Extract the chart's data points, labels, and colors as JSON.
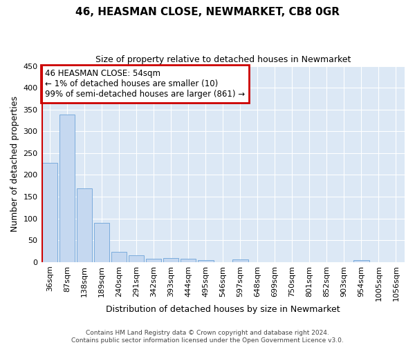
{
  "title1": "46, HEASMAN CLOSE, NEWMARKET, CB8 0GR",
  "title2": "Size of property relative to detached houses in Newmarket",
  "xlabel": "Distribution of detached houses by size in Newmarket",
  "ylabel": "Number of detached properties",
  "annotation_line1": "46 HEASMAN CLOSE: 54sqm",
  "annotation_line2": "← 1% of detached houses are smaller (10)",
  "annotation_line3": "99% of semi-detached houses are larger (861) →",
  "categories": [
    "36sqm",
    "87sqm",
    "138sqm",
    "189sqm",
    "240sqm",
    "291sqm",
    "342sqm",
    "393sqm",
    "444sqm",
    "495sqm",
    "546sqm",
    "597sqm",
    "648sqm",
    "699sqm",
    "750sqm",
    "801sqm",
    "852sqm",
    "903sqm",
    "954sqm",
    "1005sqm",
    "1056sqm"
  ],
  "values": [
    228,
    338,
    169,
    90,
    23,
    16,
    7,
    9,
    7,
    4,
    0,
    6,
    0,
    0,
    0,
    0,
    0,
    0,
    5,
    0,
    0
  ],
  "bar_color": "#c5d8f0",
  "bar_edge_color": "#7aabdc",
  "marker_color": "#cc0000",
  "ylim": [
    0,
    450
  ],
  "yticks": [
    0,
    50,
    100,
    150,
    200,
    250,
    300,
    350,
    400,
    450
  ],
  "fig_background": "#ffffff",
  "plot_background": "#dce8f5",
  "grid_color": "#ffffff",
  "annotation_box_bg": "#ffffff",
  "annotation_box_edge": "#cc0000",
  "footer": "Contains HM Land Registry data © Crown copyright and database right 2024.\nContains public sector information licensed under the Open Government Licence v3.0."
}
